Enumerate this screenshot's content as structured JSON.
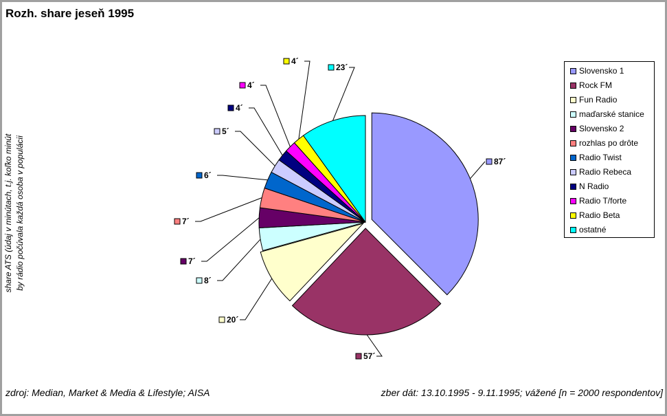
{
  "title": "Rozh. share jeseň 1995",
  "ylabel_line1": "share ATS (údaj v minútach, t.j. koľko minút",
  "ylabel_line2": "by rádio počúvala každá osoba v populácii",
  "source": "zdroj: Median, Market & Media & Lifestyle; AISA",
  "collection": "zber dát: 13.10.1995 - 9.11.1995; vážené [n = 2000 respondentov]",
  "chart_data": {
    "type": "pie",
    "title": "Rozh. share jeseň 1995",
    "legend_position": "right",
    "categories": [
      "Slovensko 1",
      "Rock FM",
      "Fun Radio",
      "maďarské stanice",
      "Slovensko 2",
      "rozhlas po drôte",
      "Radio Twist",
      "Radio Rebeca",
      "N Radio",
      "Radio T/forte",
      "Radio Beta",
      "ostatné"
    ],
    "values": [
      87,
      57,
      20,
      8,
      7,
      7,
      6,
      5,
      4,
      4,
      4,
      23
    ],
    "labels": [
      "87´",
      "57´",
      "20´",
      "8´",
      "7´",
      "7´",
      "6´",
      "5´",
      "4´",
      "4´",
      "4´",
      "23´"
    ],
    "colors": [
      "#9999ff",
      "#993366",
      "#ffffcc",
      "#ccffff",
      "#660066",
      "#ff8080",
      "#0066cc",
      "#ccccff",
      "#000080",
      "#ff00ff",
      "#ffff00",
      "#00ffff"
    ]
  }
}
